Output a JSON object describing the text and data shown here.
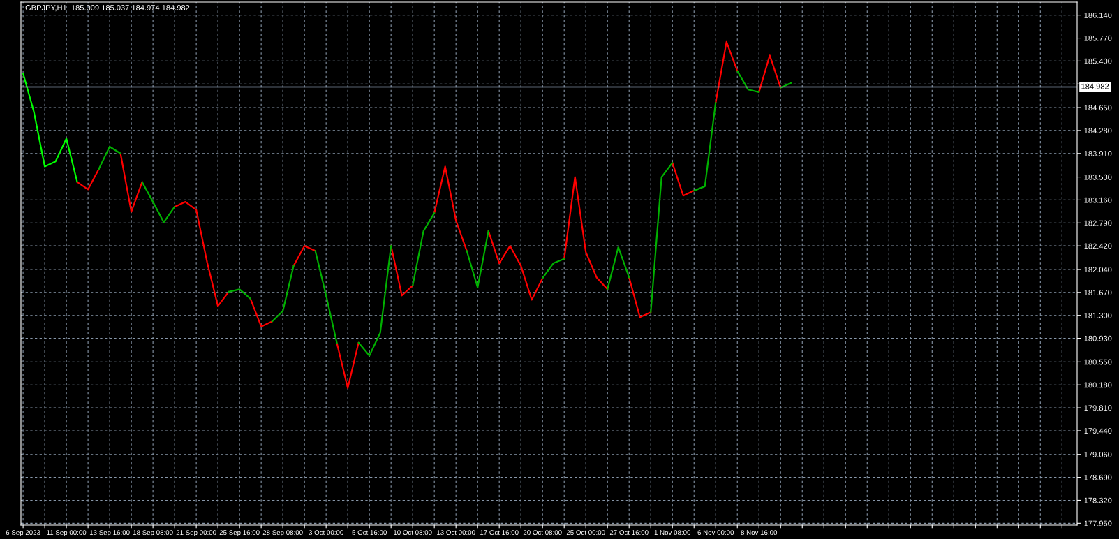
{
  "chart_data": {
    "type": "line",
    "title": "GBPJPY,H1  185.009 185.037 184.974 184.982",
    "categories": [
      "6 Sep 2023",
      null,
      null,
      null,
      "11 Sep 00:00",
      null,
      null,
      null,
      "13 Sep 16:00",
      null,
      null,
      null,
      "18 Sep 08:00",
      null,
      null,
      null,
      "21 Sep 00:00",
      null,
      null,
      null,
      "25 Sep 16:00",
      null,
      null,
      null,
      "28 Sep 08:00",
      null,
      null,
      null,
      "3 Oct 00:00",
      null,
      null,
      null,
      "5 Oct 16:00",
      null,
      null,
      null,
      "10 Oct 08:00",
      null,
      null,
      null,
      "13 Oct 00:00",
      null,
      null,
      null,
      "17 Oct 16:00",
      null,
      null,
      null,
      "20 Oct 08:00",
      null,
      null,
      null,
      "25 Oct 00:00",
      null,
      null,
      null,
      "27 Oct 16:00",
      null,
      null,
      null,
      "1 Nov 08:00",
      null,
      null,
      null,
      "6 Nov 00:00",
      null,
      null,
      null,
      "8 Nov 16:00",
      null,
      null,
      null,
      null,
      null,
      null,
      null,
      null,
      null,
      null,
      null,
      null,
      null,
      null,
      null,
      null,
      null,
      null,
      null,
      null,
      null,
      null,
      null,
      null,
      null,
      null,
      null,
      null,
      null
    ],
    "series": [
      {
        "color": "#00ff00",
        "values": [
          185.2,
          184.58,
          183.7,
          183.78,
          184.15,
          183.45,
          null,
          null,
          null,
          null,
          null,
          null,
          null,
          null,
          null,
          null,
          null,
          null,
          null,
          null,
          null,
          null,
          null,
          null,
          null,
          null,
          null,
          null,
          null,
          null,
          null,
          null,
          null,
          null,
          null,
          null,
          null,
          null,
          null,
          null,
          null,
          null,
          null,
          null,
          null,
          null,
          null,
          null,
          null,
          null,
          null,
          null,
          null,
          null,
          null,
          null,
          null,
          null,
          null,
          null,
          null,
          null,
          null,
          null,
          null,
          null,
          null,
          null,
          null,
          null,
          null,
          null,
          null,
          null,
          null,
          null,
          null,
          null,
          null,
          null,
          null,
          null,
          null,
          null,
          null,
          null,
          null,
          null,
          null,
          null,
          null,
          null,
          null,
          null,
          null,
          null,
          null,
          null
        ]
      },
      {
        "color": "#ff0000",
        "values": [
          null,
          null,
          null,
          null,
          null,
          183.45,
          183.33,
          183.66,
          null,
          183.91,
          182.97,
          183.45,
          null,
          null,
          183.05,
          183.13,
          183.0,
          182.16,
          181.45,
          181.68,
          null,
          181.57,
          181.12,
          181.2,
          null,
          182.1,
          182.42,
          182.34,
          null,
          180.85,
          180.13,
          180.86,
          null,
          null,
          182.42,
          181.62,
          181.78,
          null,
          182.95,
          183.7,
          182.83,
          182.34,
          null,
          182.66,
          182.14,
          182.42,
          182.1,
          181.55,
          181.9,
          null,
          182.21,
          183.53,
          182.32,
          181.91,
          181.72,
          null,
          181.91,
          181.27,
          181.35,
          null,
          183.76,
          183.23,
          183.31,
          null,
          184.73,
          185.71,
          185.24,
          null,
          184.9,
          185.49,
          184.97,
          null,
          null,
          null,
          null,
          null,
          null,
          null,
          null,
          null,
          null,
          null,
          null,
          null,
          null,
          null,
          null,
          null,
          null,
          null,
          null,
          null,
          null,
          null,
          null,
          null,
          null,
          null
        ]
      },
      {
        "color": "#00b000",
        "values": [
          null,
          null,
          null,
          null,
          null,
          null,
          null,
          183.66,
          184.02,
          183.91,
          null,
          183.45,
          183.13,
          182.8,
          183.05,
          null,
          null,
          null,
          null,
          181.68,
          181.72,
          181.57,
          null,
          181.2,
          181.37,
          182.1,
          null,
          182.34,
          181.62,
          180.85,
          null,
          180.86,
          180.65,
          181.02,
          182.42,
          null,
          181.78,
          182.66,
          182.95,
          null,
          null,
          182.34,
          181.75,
          182.66,
          null,
          null,
          null,
          null,
          181.9,
          182.14,
          182.21,
          null,
          null,
          null,
          181.72,
          182.4,
          181.91,
          null,
          181.35,
          183.53,
          183.76,
          null,
          183.31,
          183.38,
          184.73,
          null,
          185.24,
          184.94,
          184.9,
          null,
          184.97,
          185.05,
          null,
          null,
          null,
          null,
          null,
          null,
          null,
          null,
          null,
          null,
          null,
          null,
          null,
          null,
          null,
          null,
          null,
          null,
          null,
          null,
          null,
          null,
          null,
          null,
          null,
          null
        ]
      }
    ],
    "ylim": [
      177.92,
      186.35
    ],
    "yticks": [
      {
        "value": 186.14,
        "label": "186.140"
      },
      {
        "value": 185.77,
        "label": "185.770"
      },
      {
        "value": 185.4,
        "label": "185.400"
      },
      {
        "value": 185.03,
        "label": null
      },
      {
        "value": 184.65,
        "label": "184.650"
      },
      {
        "value": 184.28,
        "label": "184.280"
      },
      {
        "value": 183.91,
        "label": "183.910"
      },
      {
        "value": 183.53,
        "label": "183.530"
      },
      {
        "value": 183.16,
        "label": "183.160"
      },
      {
        "value": 182.79,
        "label": "182.790"
      },
      {
        "value": 182.42,
        "label": "182.420"
      },
      {
        "value": 182.04,
        "label": "182.040"
      },
      {
        "value": 181.67,
        "label": "181.670"
      },
      {
        "value": 181.3,
        "label": "181.300"
      },
      {
        "value": 180.93,
        "label": "180.930"
      },
      {
        "value": 180.55,
        "label": "180.550"
      },
      {
        "value": 180.18,
        "label": "180.180"
      },
      {
        "value": 179.81,
        "label": "179.810"
      },
      {
        "value": 179.44,
        "label": "179.440"
      },
      {
        "value": 179.06,
        "label": "179.060"
      },
      {
        "value": 178.69,
        "label": "178.690"
      },
      {
        "value": 178.32,
        "label": "178.320"
      },
      {
        "value": 177.95,
        "label": "177.950"
      }
    ],
    "ref_lines": [
      {
        "axis": "y",
        "value": 184.982,
        "label": "184.982",
        "color": "#b0c4de"
      }
    ],
    "grid": true
  }
}
